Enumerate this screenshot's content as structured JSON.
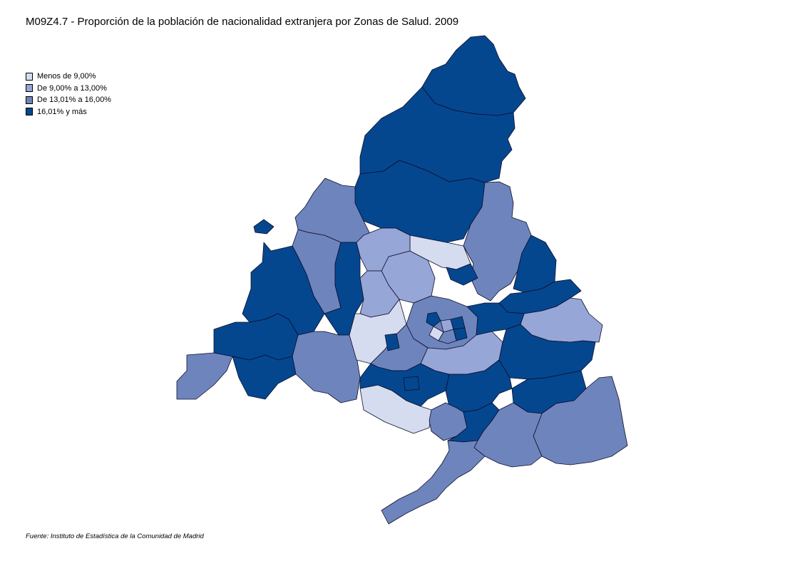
{
  "title": "M09Z4.7 - Proporción de la población de nacionalidad extranjera por Zonas de Salud. 2009",
  "legend": [
    {
      "label": "Menos de 9,00%",
      "color": "#d6dcef"
    },
    {
      "label": "De 9,00% a 13,00%",
      "color": "#96a6d6"
    },
    {
      "label": "De 13,01% a 16,00%",
      "color": "#6e84bd"
    },
    {
      "label": "16,01% y más",
      "color": "#04478f"
    }
  ],
  "source": "Fuente: Instituto de Estadística de la Comunidad de Madrid"
}
